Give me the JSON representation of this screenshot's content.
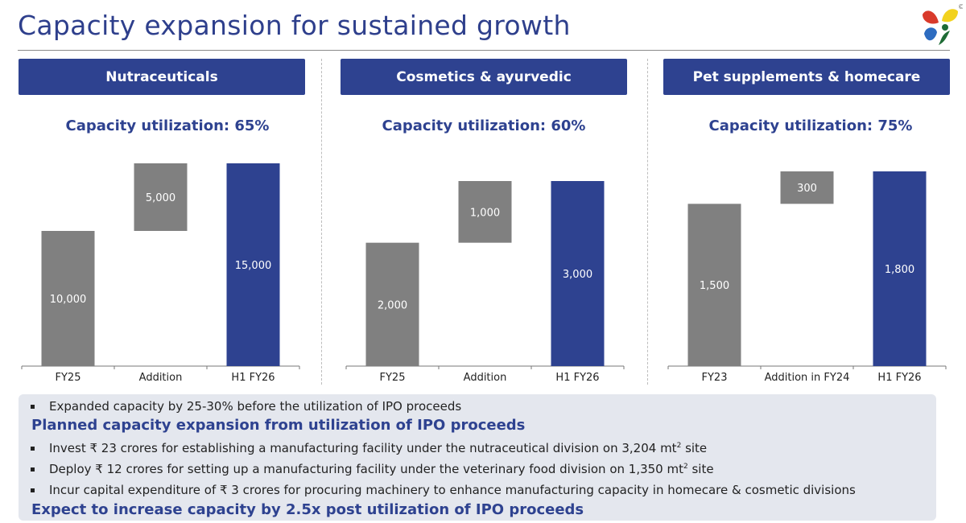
{
  "title": "Capacity expansion for sustained growth",
  "logo": "company-butterfly-logo",
  "copyright_symbol": "©",
  "panels": [
    {
      "header": "Nutraceuticals",
      "utilization": "Capacity utilization: 65%"
    },
    {
      "header": "Cosmetics & ayurvedic",
      "utilization": "Capacity utilization: 60%"
    },
    {
      "header": "Pet supplements & homecare",
      "utilization": "Capacity utilization: 75%"
    }
  ],
  "colors": {
    "primary": "#2e4290",
    "gray_bar": "#808080",
    "box_bg": "#e4e7ee"
  },
  "chart_data": [
    {
      "type": "bar",
      "subtype": "waterfall",
      "title": "Nutraceuticals",
      "categories": [
        "FY25",
        "Addition",
        "H1 FY26"
      ],
      "values": [
        10000,
        5000,
        15000
      ],
      "labels": [
        "10,000",
        "5,000",
        "15,000"
      ],
      "kinds": [
        "base",
        "delta",
        "total"
      ],
      "ylim": [
        0,
        15000
      ]
    },
    {
      "type": "bar",
      "subtype": "waterfall",
      "title": "Cosmetics & ayurvedic",
      "categories": [
        "FY25",
        "Addition",
        "H1 FY26"
      ],
      "values": [
        2000,
        1000,
        3000
      ],
      "labels": [
        "2,000",
        "1,000",
        "3,000"
      ],
      "kinds": [
        "base",
        "delta",
        "total"
      ],
      "ylim": [
        0,
        3000
      ]
    },
    {
      "type": "bar",
      "subtype": "waterfall",
      "title": "Pet supplements & homecare",
      "categories": [
        "FY23",
        "Addition in FY24",
        "H1 FY26"
      ],
      "values": [
        1500,
        300,
        1800
      ],
      "labels": [
        "1,500",
        "300",
        "1,800"
      ],
      "kinds": [
        "base",
        "delta",
        "total"
      ],
      "ylim": [
        0,
        1800
      ]
    }
  ],
  "bottom": {
    "bullet_1": "Expanded capacity by 25-30% before the utilization of IPO proceeds",
    "heading_1": "Planned capacity expansion from utilization of IPO proceeds",
    "bullet_2_pre": "Invest ₹ 23 crores for establishing a manufacturing facility under the nutraceutical division on 3,204 mt",
    "bullet_2_sup": "2",
    "bullet_2_post": " site",
    "bullet_3_pre": "Deploy ₹ 12 crores for setting up a manufacturing facility under the veterinary food division on 1,350 mt",
    "bullet_3_sup": "2",
    "bullet_3_post": " site",
    "bullet_4": "Incur capital expenditure of ₹ 3 crores for procuring machinery to enhance manufacturing capacity in homecare & cosmetic divisions",
    "heading_2": "Expect to increase capacity by 2.5x post utilization of IPO proceeds"
  }
}
